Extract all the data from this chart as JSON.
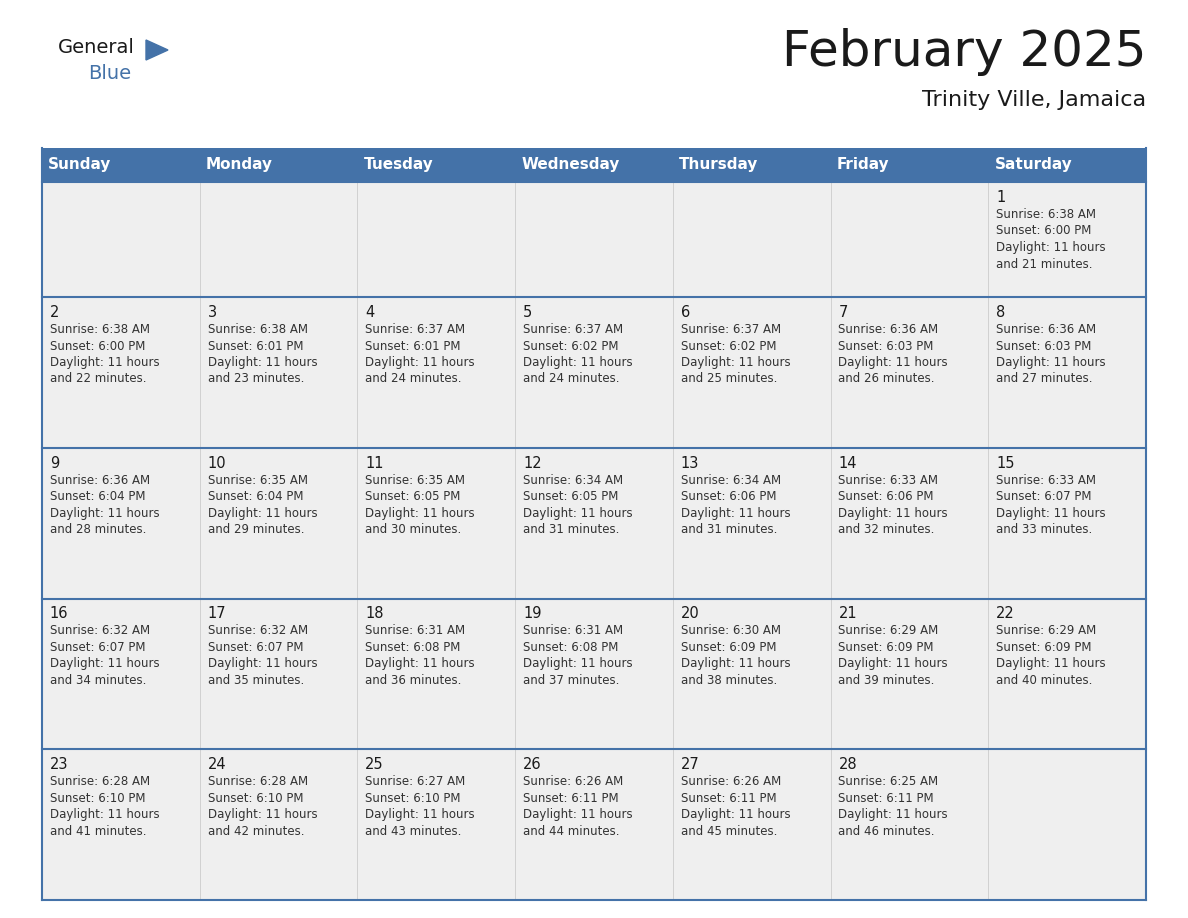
{
  "title": "February 2025",
  "subtitle": "Trinity Ville, Jamaica",
  "header_color": "#4472A8",
  "header_text_color": "#FFFFFF",
  "cell_bg_light": "#EFEFEF",
  "day_names": [
    "Sunday",
    "Monday",
    "Tuesday",
    "Wednesday",
    "Thursday",
    "Friday",
    "Saturday"
  ],
  "title_color": "#1a1a1a",
  "subtitle_color": "#1a1a1a",
  "date_color": "#1a1a1a",
  "info_color": "#333333",
  "line_color": "#4472A8",
  "days": [
    {
      "date": 1,
      "col": 6,
      "row": 0,
      "sunrise": "6:38 AM",
      "sunset": "6:00 PM",
      "daylight_h": "11 hours",
      "daylight_m": "and 21 minutes."
    },
    {
      "date": 2,
      "col": 0,
      "row": 1,
      "sunrise": "6:38 AM",
      "sunset": "6:00 PM",
      "daylight_h": "11 hours",
      "daylight_m": "and 22 minutes."
    },
    {
      "date": 3,
      "col": 1,
      "row": 1,
      "sunrise": "6:38 AM",
      "sunset": "6:01 PM",
      "daylight_h": "11 hours",
      "daylight_m": "and 23 minutes."
    },
    {
      "date": 4,
      "col": 2,
      "row": 1,
      "sunrise": "6:37 AM",
      "sunset": "6:01 PM",
      "daylight_h": "11 hours",
      "daylight_m": "and 24 minutes."
    },
    {
      "date": 5,
      "col": 3,
      "row": 1,
      "sunrise": "6:37 AM",
      "sunset": "6:02 PM",
      "daylight_h": "11 hours",
      "daylight_m": "and 24 minutes."
    },
    {
      "date": 6,
      "col": 4,
      "row": 1,
      "sunrise": "6:37 AM",
      "sunset": "6:02 PM",
      "daylight_h": "11 hours",
      "daylight_m": "and 25 minutes."
    },
    {
      "date": 7,
      "col": 5,
      "row": 1,
      "sunrise": "6:36 AM",
      "sunset": "6:03 PM",
      "daylight_h": "11 hours",
      "daylight_m": "and 26 minutes."
    },
    {
      "date": 8,
      "col": 6,
      "row": 1,
      "sunrise": "6:36 AM",
      "sunset": "6:03 PM",
      "daylight_h": "11 hours",
      "daylight_m": "and 27 minutes."
    },
    {
      "date": 9,
      "col": 0,
      "row": 2,
      "sunrise": "6:36 AM",
      "sunset": "6:04 PM",
      "daylight_h": "11 hours",
      "daylight_m": "and 28 minutes."
    },
    {
      "date": 10,
      "col": 1,
      "row": 2,
      "sunrise": "6:35 AM",
      "sunset": "6:04 PM",
      "daylight_h": "11 hours",
      "daylight_m": "and 29 minutes."
    },
    {
      "date": 11,
      "col": 2,
      "row": 2,
      "sunrise": "6:35 AM",
      "sunset": "6:05 PM",
      "daylight_h": "11 hours",
      "daylight_m": "and 30 minutes."
    },
    {
      "date": 12,
      "col": 3,
      "row": 2,
      "sunrise": "6:34 AM",
      "sunset": "6:05 PM",
      "daylight_h": "11 hours",
      "daylight_m": "and 31 minutes."
    },
    {
      "date": 13,
      "col": 4,
      "row": 2,
      "sunrise": "6:34 AM",
      "sunset": "6:06 PM",
      "daylight_h": "11 hours",
      "daylight_m": "and 31 minutes."
    },
    {
      "date": 14,
      "col": 5,
      "row": 2,
      "sunrise": "6:33 AM",
      "sunset": "6:06 PM",
      "daylight_h": "11 hours",
      "daylight_m": "and 32 minutes."
    },
    {
      "date": 15,
      "col": 6,
      "row": 2,
      "sunrise": "6:33 AM",
      "sunset": "6:07 PM",
      "daylight_h": "11 hours",
      "daylight_m": "and 33 minutes."
    },
    {
      "date": 16,
      "col": 0,
      "row": 3,
      "sunrise": "6:32 AM",
      "sunset": "6:07 PM",
      "daylight_h": "11 hours",
      "daylight_m": "and 34 minutes."
    },
    {
      "date": 17,
      "col": 1,
      "row": 3,
      "sunrise": "6:32 AM",
      "sunset": "6:07 PM",
      "daylight_h": "11 hours",
      "daylight_m": "and 35 minutes."
    },
    {
      "date": 18,
      "col": 2,
      "row": 3,
      "sunrise": "6:31 AM",
      "sunset": "6:08 PM",
      "daylight_h": "11 hours",
      "daylight_m": "and 36 minutes."
    },
    {
      "date": 19,
      "col": 3,
      "row": 3,
      "sunrise": "6:31 AM",
      "sunset": "6:08 PM",
      "daylight_h": "11 hours",
      "daylight_m": "and 37 minutes."
    },
    {
      "date": 20,
      "col": 4,
      "row": 3,
      "sunrise": "6:30 AM",
      "sunset": "6:09 PM",
      "daylight_h": "11 hours",
      "daylight_m": "and 38 minutes."
    },
    {
      "date": 21,
      "col": 5,
      "row": 3,
      "sunrise": "6:29 AM",
      "sunset": "6:09 PM",
      "daylight_h": "11 hours",
      "daylight_m": "and 39 minutes."
    },
    {
      "date": 22,
      "col": 6,
      "row": 3,
      "sunrise": "6:29 AM",
      "sunset": "6:09 PM",
      "daylight_h": "11 hours",
      "daylight_m": "and 40 minutes."
    },
    {
      "date": 23,
      "col": 0,
      "row": 4,
      "sunrise": "6:28 AM",
      "sunset": "6:10 PM",
      "daylight_h": "11 hours",
      "daylight_m": "and 41 minutes."
    },
    {
      "date": 24,
      "col": 1,
      "row": 4,
      "sunrise": "6:28 AM",
      "sunset": "6:10 PM",
      "daylight_h": "11 hours",
      "daylight_m": "and 42 minutes."
    },
    {
      "date": 25,
      "col": 2,
      "row": 4,
      "sunrise": "6:27 AM",
      "sunset": "6:10 PM",
      "daylight_h": "11 hours",
      "daylight_m": "and 43 minutes."
    },
    {
      "date": 26,
      "col": 3,
      "row": 4,
      "sunrise": "6:26 AM",
      "sunset": "6:11 PM",
      "daylight_h": "11 hours",
      "daylight_m": "and 44 minutes."
    },
    {
      "date": 27,
      "col": 4,
      "row": 4,
      "sunrise": "6:26 AM",
      "sunset": "6:11 PM",
      "daylight_h": "11 hours",
      "daylight_m": "and 45 minutes."
    },
    {
      "date": 28,
      "col": 5,
      "row": 4,
      "sunrise": "6:25 AM",
      "sunset": "6:11 PM",
      "daylight_h": "11 hours",
      "daylight_m": "and 46 minutes."
    }
  ],
  "num_rows": 5,
  "logo_triangle_color": "#4472A8"
}
